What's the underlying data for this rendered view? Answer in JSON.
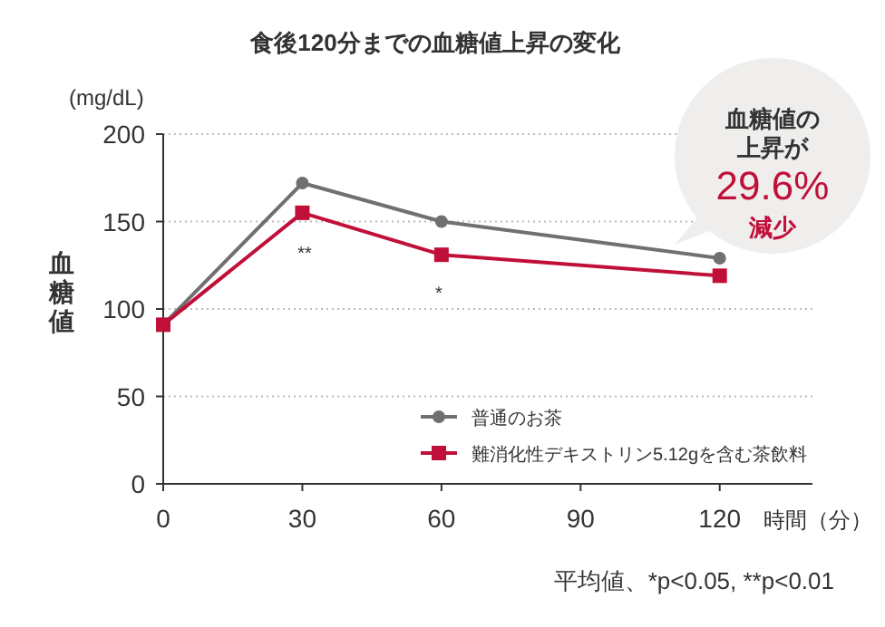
{
  "chart_data": {
    "type": "line",
    "title": "食後120分までの血糖値上昇の変化",
    "xlabel": "時間（分）",
    "ylabel": "血糖値",
    "x": [
      0,
      30,
      60,
      120
    ],
    "series": [
      {
        "name": "普通のお茶",
        "color": "#707070",
        "marker": "circle",
        "values": [
          91,
          172,
          150,
          129
        ]
      },
      {
        "name": "難消化性デキストリン5.12gを含む茶飲料",
        "color": "#c0103a",
        "marker": "square",
        "values": [
          91,
          155,
          131,
          119
        ]
      }
    ],
    "xlim": [
      0,
      140
    ],
    "xticks": [
      0,
      30,
      60,
      90,
      120
    ],
    "ylim": [
      0,
      200
    ],
    "yticks": [
      0,
      50,
      100,
      150,
      200
    ],
    "grid": "y",
    "legend": "bottom right",
    "annotations": [
      "(mg/dL)",
      "**",
      "*",
      "血糖値の",
      "上昇が",
      "29.6%",
      "減少",
      "平均値、*p<0.05, **p<0.01"
    ]
  }
}
